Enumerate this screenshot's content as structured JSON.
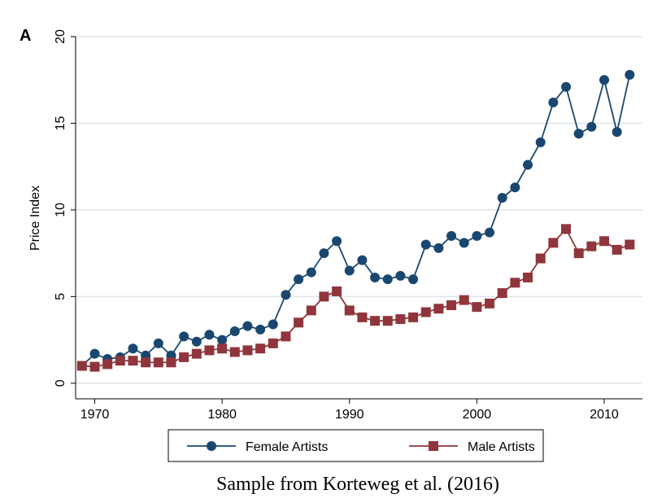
{
  "chart_data": {
    "type": "line",
    "panel_label": "A",
    "ylabel": "Price Index",
    "x": [
      1969,
      1970,
      1971,
      1972,
      1973,
      1974,
      1975,
      1976,
      1977,
      1978,
      1979,
      1980,
      1981,
      1982,
      1983,
      1984,
      1985,
      1986,
      1987,
      1988,
      1989,
      1990,
      1991,
      1992,
      1993,
      1994,
      1995,
      1996,
      1997,
      1998,
      1999,
      2000,
      2001,
      2002,
      2003,
      2004,
      2005,
      2006,
      2007,
      2008,
      2009,
      2010,
      2011,
      2012
    ],
    "series": [
      {
        "name": "Female Artists",
        "color": "#1a476f",
        "marker": "circle",
        "values": [
          1.0,
          1.7,
          1.4,
          1.5,
          2.0,
          1.6,
          2.3,
          1.6,
          2.7,
          2.4,
          2.8,
          2.5,
          3.0,
          3.3,
          3.1,
          3.4,
          5.1,
          6.0,
          6.4,
          7.5,
          8.2,
          6.5,
          7.1,
          6.1,
          6.0,
          6.2,
          6.0,
          8.0,
          7.8,
          8.5,
          8.1,
          8.5,
          8.7,
          10.7,
          11.3,
          12.6,
          13.9,
          16.2,
          17.1,
          14.4,
          14.8,
          17.5,
          14.5,
          17.8
        ]
      },
      {
        "name": "Male Artists",
        "color": "#90353b",
        "marker": "square",
        "values": [
          1.0,
          0.95,
          1.1,
          1.3,
          1.3,
          1.2,
          1.2,
          1.2,
          1.5,
          1.7,
          1.9,
          2.0,
          1.8,
          1.9,
          2.0,
          2.3,
          2.7,
          3.5,
          4.2,
          5.0,
          5.3,
          4.2,
          3.8,
          3.6,
          3.6,
          3.7,
          3.8,
          4.1,
          4.3,
          4.5,
          4.8,
          4.4,
          4.6,
          5.2,
          5.8,
          6.1,
          7.2,
          8.1,
          8.9,
          7.5,
          7.9,
          8.2,
          7.7,
          8.0
        ]
      }
    ],
    "xlim": [
      1968.5,
      2013
    ],
    "xticks": [
      1970,
      1980,
      1990,
      2000,
      2010
    ],
    "ylim": [
      -0.9,
      20
    ],
    "yticks": [
      0,
      5,
      10,
      15,
      20
    ],
    "grid": true,
    "legend": "bottom"
  },
  "caption": "Sample from Korteweg et al. (2016)"
}
